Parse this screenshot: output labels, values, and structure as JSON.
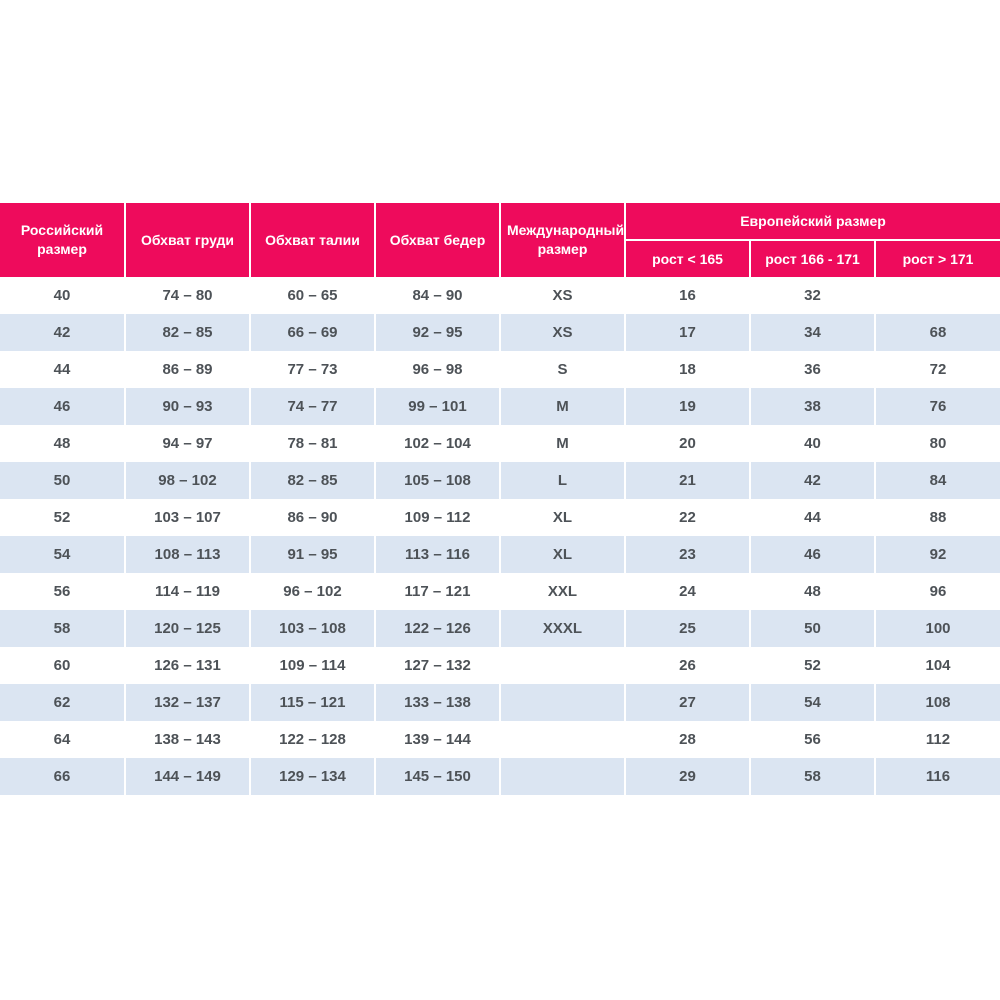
{
  "colors": {
    "accent": "#ee0b5c",
    "stripe": "#dbe5f2",
    "header_text": "#ffffff",
    "cell_text": "#4d5257",
    "background": "#ffffff"
  },
  "chart_data": {
    "type": "table",
    "title": "",
    "columns": [
      "Российский размер",
      "Обхват груди",
      "Обхват талии",
      "Обхват бедер",
      "Международный размер"
    ],
    "group_header": {
      "label": "Европейский размер",
      "subcolumns": [
        "рост < 165",
        "рост 166 - 171",
        "рост > 171"
      ]
    },
    "rows": [
      [
        "40",
        "74 – 80",
        "60 – 65",
        "84 – 90",
        "XS",
        "16",
        "32",
        ""
      ],
      [
        "42",
        "82 – 85",
        "66 – 69",
        "92 – 95",
        "XS",
        "17",
        "34",
        "68"
      ],
      [
        "44",
        "86 – 89",
        "77 – 73",
        "96 – 98",
        "S",
        "18",
        "36",
        "72"
      ],
      [
        "46",
        "90 – 93",
        "74 – 77",
        "99 – 101",
        "M",
        "19",
        "38",
        "76"
      ],
      [
        "48",
        "94 – 97",
        "78 – 81",
        "102 – 104",
        "M",
        "20",
        "40",
        "80"
      ],
      [
        "50",
        "98 – 102",
        "82 – 85",
        "105 – 108",
        "L",
        "21",
        "42",
        "84"
      ],
      [
        "52",
        "103 – 107",
        "86 – 90",
        "109 – 112",
        "XL",
        "22",
        "44",
        "88"
      ],
      [
        "54",
        "108 – 113",
        "91 – 95",
        "113 – 116",
        "XL",
        "23",
        "46",
        "92"
      ],
      [
        "56",
        "114 – 119",
        "96 – 102",
        "117 – 121",
        "XXL",
        "24",
        "48",
        "96"
      ],
      [
        "58",
        "120 – 125",
        "103 – 108",
        "122 – 126",
        "XXXL",
        "25",
        "50",
        "100"
      ],
      [
        "60",
        "126 – 131",
        "109 – 114",
        "127 – 132",
        "",
        "26",
        "52",
        "104"
      ],
      [
        "62",
        "132 – 137",
        "115 – 121",
        "133 – 138",
        "",
        "27",
        "54",
        "108"
      ],
      [
        "64",
        "138 – 143",
        "122 – 128",
        "139 – 144",
        "",
        "28",
        "56",
        "112"
      ],
      [
        "66",
        "144 – 149",
        "129 – 134",
        "145 – 150",
        "",
        "29",
        "58",
        "116"
      ]
    ]
  }
}
